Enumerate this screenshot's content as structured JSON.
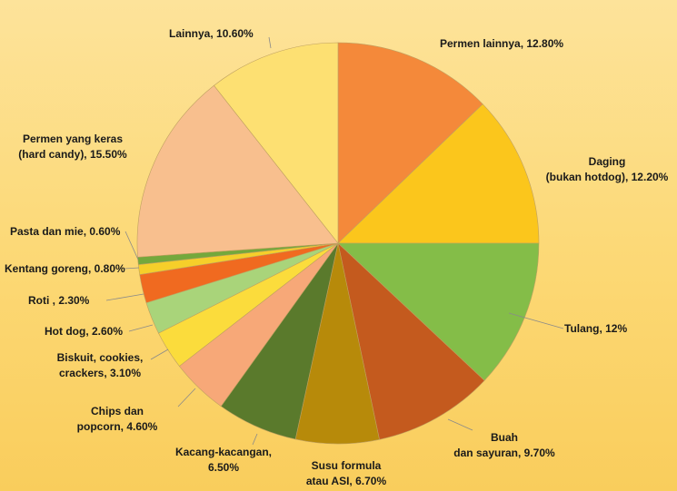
{
  "chart_data": {
    "type": "pie",
    "title": "",
    "slices": [
      {
        "label": "Permen lainnya, 12.80%",
        "value": 12.8,
        "color": "#f4893a"
      },
      {
        "label": "Daging (bukan hotdog), 12.20%",
        "value": 12.2,
        "color": "#fbc61c"
      },
      {
        "label": "Tulang, 12%",
        "value": 12.0,
        "color": "#84bd48"
      },
      {
        "label": "Buah dan sayuran, 9.70%",
        "value": 9.7,
        "color": "#c45a1e"
      },
      {
        "label": "Susu formula atau ASI, 6.70%",
        "value": 6.7,
        "color": "#b78a0a"
      },
      {
        "label": "Kacang-kacangan, 6.50%",
        "value": 6.5,
        "color": "#5a7a2c"
      },
      {
        "label": "Chips dan popcorn, 4.60%",
        "value": 4.6,
        "color": "#f7a878"
      },
      {
        "label": "Biskuit, cookies, crackers, 3.10%",
        "value": 3.1,
        "color": "#fbdc3c"
      },
      {
        "label": "Hot dog, 2.60%",
        "value": 2.6,
        "color": "#a9d47a"
      },
      {
        "label": "Roti , 2.30%",
        "value": 2.3,
        "color": "#f06a20"
      },
      {
        "label": "Kentang goreng, 0.80%",
        "value": 0.8,
        "color": "#f6cf2a"
      },
      {
        "label": "Pasta dan mie, 0.60%",
        "value": 0.6,
        "color": "#74a83c"
      },
      {
        "label": "Permen yang keras (hard candy), 15.50%",
        "value": 15.5,
        "color": "#f8bf8e"
      },
      {
        "label": "Lainnya, 10.60%",
        "value": 10.6,
        "color": "#fde072"
      }
    ]
  }
}
